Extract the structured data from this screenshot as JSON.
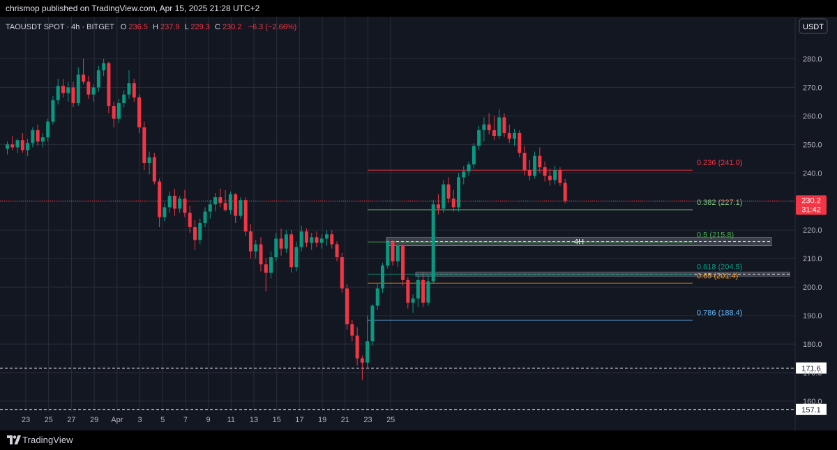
{
  "header": {
    "publish_line": "chrismop published on TradingView.com, Apr 15, 2025 21:28 UTC+2"
  },
  "footer": {
    "brand_name": "TradingView"
  },
  "colors": {
    "background": "#131722",
    "grid": "#2a2e39",
    "up": "#089981",
    "down": "#f23645",
    "axis_text": "#b2b5be"
  },
  "chart_data": {
    "type": "candlestick",
    "symbol_line": {
      "name": "TAOUSDT SPOT · 4h · BITGET",
      "o_label": "O",
      "o_value": "236.5",
      "h_label": "H",
      "h_value": "237.9",
      "l_label": "L",
      "l_value": "229.3",
      "c_label": "C",
      "c_value": "230.2",
      "change": "−6.3 (−2.66%)"
    },
    "currency_button": "USDT",
    "y_axis": {
      "range": [
        154,
        288
      ],
      "ticks": [
        "280.0",
        "270.0",
        "260.0",
        "250.0",
        "240.0",
        "230.0",
        "220.0",
        "210.0",
        "200.0",
        "190.0",
        "180.0",
        "170.0",
        "160.0"
      ]
    },
    "x_axis": {
      "ticks": [
        "23",
        "25",
        "27",
        "29",
        "Apr",
        "3",
        "5",
        "7",
        "9",
        "11",
        "13",
        "15",
        "17",
        "19",
        "21",
        "23",
        "25"
      ]
    },
    "last_price": {
      "value": 230.2,
      "label": "230.2",
      "countdown": "31:42"
    },
    "horizontal_levels": [
      {
        "value": 171.6,
        "label": "171.6"
      },
      {
        "value": 157.1,
        "label": "157.1"
      }
    ],
    "fib_levels": [
      {
        "ratio_label": "0.236 (241.0)",
        "value": 241.0,
        "color": "#f23645"
      },
      {
        "ratio_label": "0.382 (227.1)",
        "value": 227.1,
        "color": "#81c784"
      },
      {
        "ratio_label": "0.5 (215.8)",
        "value": 215.8,
        "color": "#4caf50"
      },
      {
        "ratio_label": "0.618 (204.5)",
        "value": 204.5,
        "color": "#089981"
      },
      {
        "ratio_label": "0.65 (201.4)",
        "value": 201.4,
        "color": "#ff9800"
      },
      {
        "ratio_label": "0.786 (188.4)",
        "value": 188.4,
        "color": "#64b5f6"
      }
    ],
    "zones": [
      {
        "label": "4H",
        "top": 217.5,
        "bottom": 214.5
      },
      {
        "label": "",
        "top": 205.2,
        "bottom": 203.8
      }
    ],
    "candles": [
      {
        "t": 0,
        "o": 248.5,
        "h": 251,
        "l": 246.5,
        "c": 250
      },
      {
        "t": 1,
        "o": 250,
        "h": 253,
        "l": 248,
        "c": 249
      },
      {
        "t": 2,
        "o": 249,
        "h": 252,
        "l": 247,
        "c": 251.5
      },
      {
        "t": 3,
        "o": 251.5,
        "h": 254,
        "l": 247,
        "c": 248
      },
      {
        "t": 4,
        "o": 248,
        "h": 252,
        "l": 246,
        "c": 250.5
      },
      {
        "t": 5,
        "o": 250.5,
        "h": 256,
        "l": 249,
        "c": 255
      },
      {
        "t": 6,
        "o": 255,
        "h": 257,
        "l": 249.5,
        "c": 251
      },
      {
        "t": 7,
        "o": 251,
        "h": 254,
        "l": 249,
        "c": 252.5
      },
      {
        "t": 8,
        "o": 252.5,
        "h": 259,
        "l": 251,
        "c": 258
      },
      {
        "t": 9,
        "o": 258,
        "h": 267,
        "l": 257,
        "c": 265.5
      },
      {
        "t": 10,
        "o": 265.5,
        "h": 273,
        "l": 264,
        "c": 270.5
      },
      {
        "t": 11,
        "o": 270.5,
        "h": 273,
        "l": 266.5,
        "c": 268
      },
      {
        "t": 12,
        "o": 268,
        "h": 272,
        "l": 265,
        "c": 270
      },
      {
        "t": 13,
        "o": 270,
        "h": 272,
        "l": 263,
        "c": 264.5
      },
      {
        "t": 14,
        "o": 264.5,
        "h": 277,
        "l": 263.5,
        "c": 274.5
      },
      {
        "t": 15,
        "o": 274.5,
        "h": 280,
        "l": 271,
        "c": 272
      },
      {
        "t": 16,
        "o": 272,
        "h": 274,
        "l": 266,
        "c": 267.5
      },
      {
        "t": 17,
        "o": 267.5,
        "h": 271,
        "l": 265,
        "c": 270
      },
      {
        "t": 18,
        "o": 270,
        "h": 277.5,
        "l": 268.5,
        "c": 276
      },
      {
        "t": 19,
        "o": 276,
        "h": 280,
        "l": 274,
        "c": 278.5
      },
      {
        "t": 20,
        "o": 278.5,
        "h": 279,
        "l": 261,
        "c": 263.5
      },
      {
        "t": 21,
        "o": 263.5,
        "h": 265,
        "l": 256,
        "c": 259
      },
      {
        "t": 22,
        "o": 259,
        "h": 266,
        "l": 257.5,
        "c": 264.5
      },
      {
        "t": 23,
        "o": 264.5,
        "h": 269,
        "l": 263,
        "c": 267.5
      },
      {
        "t": 24,
        "o": 267.5,
        "h": 276,
        "l": 266,
        "c": 271.5
      },
      {
        "t": 25,
        "o": 271.5,
        "h": 273,
        "l": 265,
        "c": 266.5
      },
      {
        "t": 26,
        "o": 266.5,
        "h": 267.5,
        "l": 254,
        "c": 256
      },
      {
        "t": 27,
        "o": 256,
        "h": 258,
        "l": 241,
        "c": 243.5
      },
      {
        "t": 28,
        "o": 243.5,
        "h": 247.5,
        "l": 239.5,
        "c": 245.5
      },
      {
        "t": 29,
        "o": 245.5,
        "h": 247,
        "l": 236,
        "c": 237
      },
      {
        "t": 30,
        "o": 237,
        "h": 238,
        "l": 221,
        "c": 224.5
      },
      {
        "t": 31,
        "o": 224.5,
        "h": 229.5,
        "l": 223,
        "c": 228
      },
      {
        "t": 32,
        "o": 228,
        "h": 233.5,
        "l": 226,
        "c": 232
      },
      {
        "t": 33,
        "o": 232,
        "h": 234.5,
        "l": 225,
        "c": 227.5
      },
      {
        "t": 34,
        "o": 227.5,
        "h": 232,
        "l": 226,
        "c": 231
      },
      {
        "t": 35,
        "o": 231,
        "h": 234,
        "l": 224.5,
        "c": 226
      },
      {
        "t": 36,
        "o": 226,
        "h": 228.5,
        "l": 219,
        "c": 221
      },
      {
        "t": 37,
        "o": 221,
        "h": 223.5,
        "l": 213,
        "c": 216.5
      },
      {
        "t": 38,
        "o": 216.5,
        "h": 224,
        "l": 215,
        "c": 222.5
      },
      {
        "t": 39,
        "o": 222.5,
        "h": 228,
        "l": 221,
        "c": 226.5
      },
      {
        "t": 40,
        "o": 226.5,
        "h": 230.5,
        "l": 224,
        "c": 229
      },
      {
        "t": 41,
        "o": 229,
        "h": 233,
        "l": 226.5,
        "c": 231.5
      },
      {
        "t": 42,
        "o": 231.5,
        "h": 234.5,
        "l": 228,
        "c": 229.5
      },
      {
        "t": 43,
        "o": 229.5,
        "h": 234,
        "l": 226.5,
        "c": 227
      },
      {
        "t": 44,
        "o": 227,
        "h": 233.5,
        "l": 225.5,
        "c": 232.5
      },
      {
        "t": 45,
        "o": 232.5,
        "h": 233,
        "l": 222.5,
        "c": 225
      },
      {
        "t": 46,
        "o": 225,
        "h": 231.5,
        "l": 224,
        "c": 230.5
      },
      {
        "t": 47,
        "o": 230.5,
        "h": 231.5,
        "l": 218,
        "c": 219.5
      },
      {
        "t": 48,
        "o": 219.5,
        "h": 222,
        "l": 210,
        "c": 212.5
      },
      {
        "t": 49,
        "o": 212.5,
        "h": 216.5,
        "l": 210,
        "c": 215
      },
      {
        "t": 50,
        "o": 215,
        "h": 217.5,
        "l": 205.5,
        "c": 208
      },
      {
        "t": 51,
        "o": 208,
        "h": 210,
        "l": 198.5,
        "c": 205
      },
      {
        "t": 52,
        "o": 205,
        "h": 212.5,
        "l": 203,
        "c": 210.5
      },
      {
        "t": 53,
        "o": 210.5,
        "h": 219,
        "l": 209,
        "c": 217
      },
      {
        "t": 54,
        "o": 217,
        "h": 220.5,
        "l": 211,
        "c": 213.5
      },
      {
        "t": 55,
        "o": 213.5,
        "h": 220,
        "l": 212,
        "c": 218.5
      },
      {
        "t": 56,
        "o": 218.5,
        "h": 220,
        "l": 205,
        "c": 207
      },
      {
        "t": 57,
        "o": 207,
        "h": 216,
        "l": 205.5,
        "c": 214
      },
      {
        "t": 58,
        "o": 214,
        "h": 221.5,
        "l": 212.5,
        "c": 219.5
      },
      {
        "t": 59,
        "o": 219.5,
        "h": 220.5,
        "l": 214,
        "c": 215.5
      },
      {
        "t": 60,
        "o": 215.5,
        "h": 219,
        "l": 213,
        "c": 217.5
      },
      {
        "t": 61,
        "o": 217.5,
        "h": 219.5,
        "l": 214,
        "c": 215.5
      },
      {
        "t": 62,
        "o": 215.5,
        "h": 218.5,
        "l": 213.5,
        "c": 217
      },
      {
        "t": 63,
        "o": 217,
        "h": 220,
        "l": 214.5,
        "c": 218.5
      },
      {
        "t": 64,
        "o": 218.5,
        "h": 220,
        "l": 213.5,
        "c": 215
      },
      {
        "t": 65,
        "o": 215,
        "h": 216,
        "l": 209,
        "c": 210.5
      },
      {
        "t": 66,
        "o": 210.5,
        "h": 212,
        "l": 198,
        "c": 199.5
      },
      {
        "t": 67,
        "o": 199.5,
        "h": 201,
        "l": 185,
        "c": 187
      },
      {
        "t": 68,
        "o": 187,
        "h": 188.5,
        "l": 181,
        "c": 183
      },
      {
        "t": 69,
        "o": 183,
        "h": 186,
        "l": 172.5,
        "c": 175
      },
      {
        "t": 70,
        "o": 175,
        "h": 176,
        "l": 167.5,
        "c": 173.5
      },
      {
        "t": 71,
        "o": 173.5,
        "h": 190,
        "l": 171.5,
        "c": 181
      },
      {
        "t": 72,
        "o": 181,
        "h": 194,
        "l": 179.5,
        "c": 193.5
      },
      {
        "t": 73,
        "o": 193.5,
        "h": 201,
        "l": 192,
        "c": 199.5
      },
      {
        "t": 74,
        "o": 199.5,
        "h": 208.5,
        "l": 198,
        "c": 207.5
      },
      {
        "t": 75,
        "o": 207.5,
        "h": 217,
        "l": 206.5,
        "c": 216
      },
      {
        "t": 76,
        "o": 216,
        "h": 216.5,
        "l": 207.5,
        "c": 209
      },
      {
        "t": 77,
        "o": 209,
        "h": 215,
        "l": 207,
        "c": 214.5
      },
      {
        "t": 78,
        "o": 214.5,
        "h": 215,
        "l": 200.5,
        "c": 202.5
      },
      {
        "t": 79,
        "o": 202.5,
        "h": 203.5,
        "l": 192.5,
        "c": 194.5
      },
      {
        "t": 80,
        "o": 194.5,
        "h": 197.5,
        "l": 191,
        "c": 196
      },
      {
        "t": 81,
        "o": 196,
        "h": 204.5,
        "l": 193,
        "c": 202.5
      },
      {
        "t": 82,
        "o": 202.5,
        "h": 205,
        "l": 193,
        "c": 194.5
      },
      {
        "t": 83,
        "o": 194.5,
        "h": 204,
        "l": 193.5,
        "c": 202
      },
      {
        "t": 84,
        "o": 202,
        "h": 230.5,
        "l": 201,
        "c": 229
      },
      {
        "t": 85,
        "o": 229,
        "h": 232.5,
        "l": 225.5,
        "c": 227.5
      },
      {
        "t": 86,
        "o": 227.5,
        "h": 237.5,
        "l": 226,
        "c": 236
      },
      {
        "t": 87,
        "o": 236,
        "h": 238.5,
        "l": 229.5,
        "c": 231
      },
      {
        "t": 88,
        "o": 231,
        "h": 234,
        "l": 226.5,
        "c": 228
      },
      {
        "t": 89,
        "o": 228,
        "h": 240,
        "l": 226.5,
        "c": 238.5
      },
      {
        "t": 90,
        "o": 238.5,
        "h": 242.5,
        "l": 236,
        "c": 240.5
      },
      {
        "t": 91,
        "o": 240.5,
        "h": 244,
        "l": 239,
        "c": 243
      },
      {
        "t": 92,
        "o": 243,
        "h": 250.5,
        "l": 241.5,
        "c": 249.5
      },
      {
        "t": 93,
        "o": 249.5,
        "h": 256.5,
        "l": 248,
        "c": 255
      },
      {
        "t": 94,
        "o": 255,
        "h": 259.5,
        "l": 251,
        "c": 257
      },
      {
        "t": 95,
        "o": 257,
        "h": 261,
        "l": 253.5,
        "c": 255
      },
      {
        "t": 96,
        "o": 255,
        "h": 260,
        "l": 251.5,
        "c": 253
      },
      {
        "t": 97,
        "o": 253,
        "h": 262.5,
        "l": 252,
        "c": 259.5
      },
      {
        "t": 98,
        "o": 259.5,
        "h": 261,
        "l": 252.5,
        "c": 254
      },
      {
        "t": 99,
        "o": 254,
        "h": 257,
        "l": 250.5,
        "c": 252
      },
      {
        "t": 100,
        "o": 252,
        "h": 255.5,
        "l": 249.5,
        "c": 254
      },
      {
        "t": 101,
        "o": 254,
        "h": 255,
        "l": 245.5,
        "c": 247
      },
      {
        "t": 102,
        "o": 247,
        "h": 249.5,
        "l": 239,
        "c": 241
      },
      {
        "t": 103,
        "o": 241,
        "h": 244.5,
        "l": 237.5,
        "c": 239
      },
      {
        "t": 104,
        "o": 239,
        "h": 247.5,
        "l": 238,
        "c": 246
      },
      {
        "t": 105,
        "o": 246,
        "h": 249,
        "l": 240,
        "c": 242
      },
      {
        "t": 106,
        "o": 242,
        "h": 244,
        "l": 237,
        "c": 239
      },
      {
        "t": 107,
        "o": 239,
        "h": 241.5,
        "l": 235.5,
        "c": 237.5
      },
      {
        "t": 108,
        "o": 237.5,
        "h": 242.5,
        "l": 236,
        "c": 241
      },
      {
        "t": 109,
        "o": 241,
        "h": 242,
        "l": 235.5,
        "c": 236.5
      },
      {
        "t": 110,
        "o": 236.5,
        "h": 237.9,
        "l": 229.3,
        "c": 230.2
      }
    ]
  }
}
